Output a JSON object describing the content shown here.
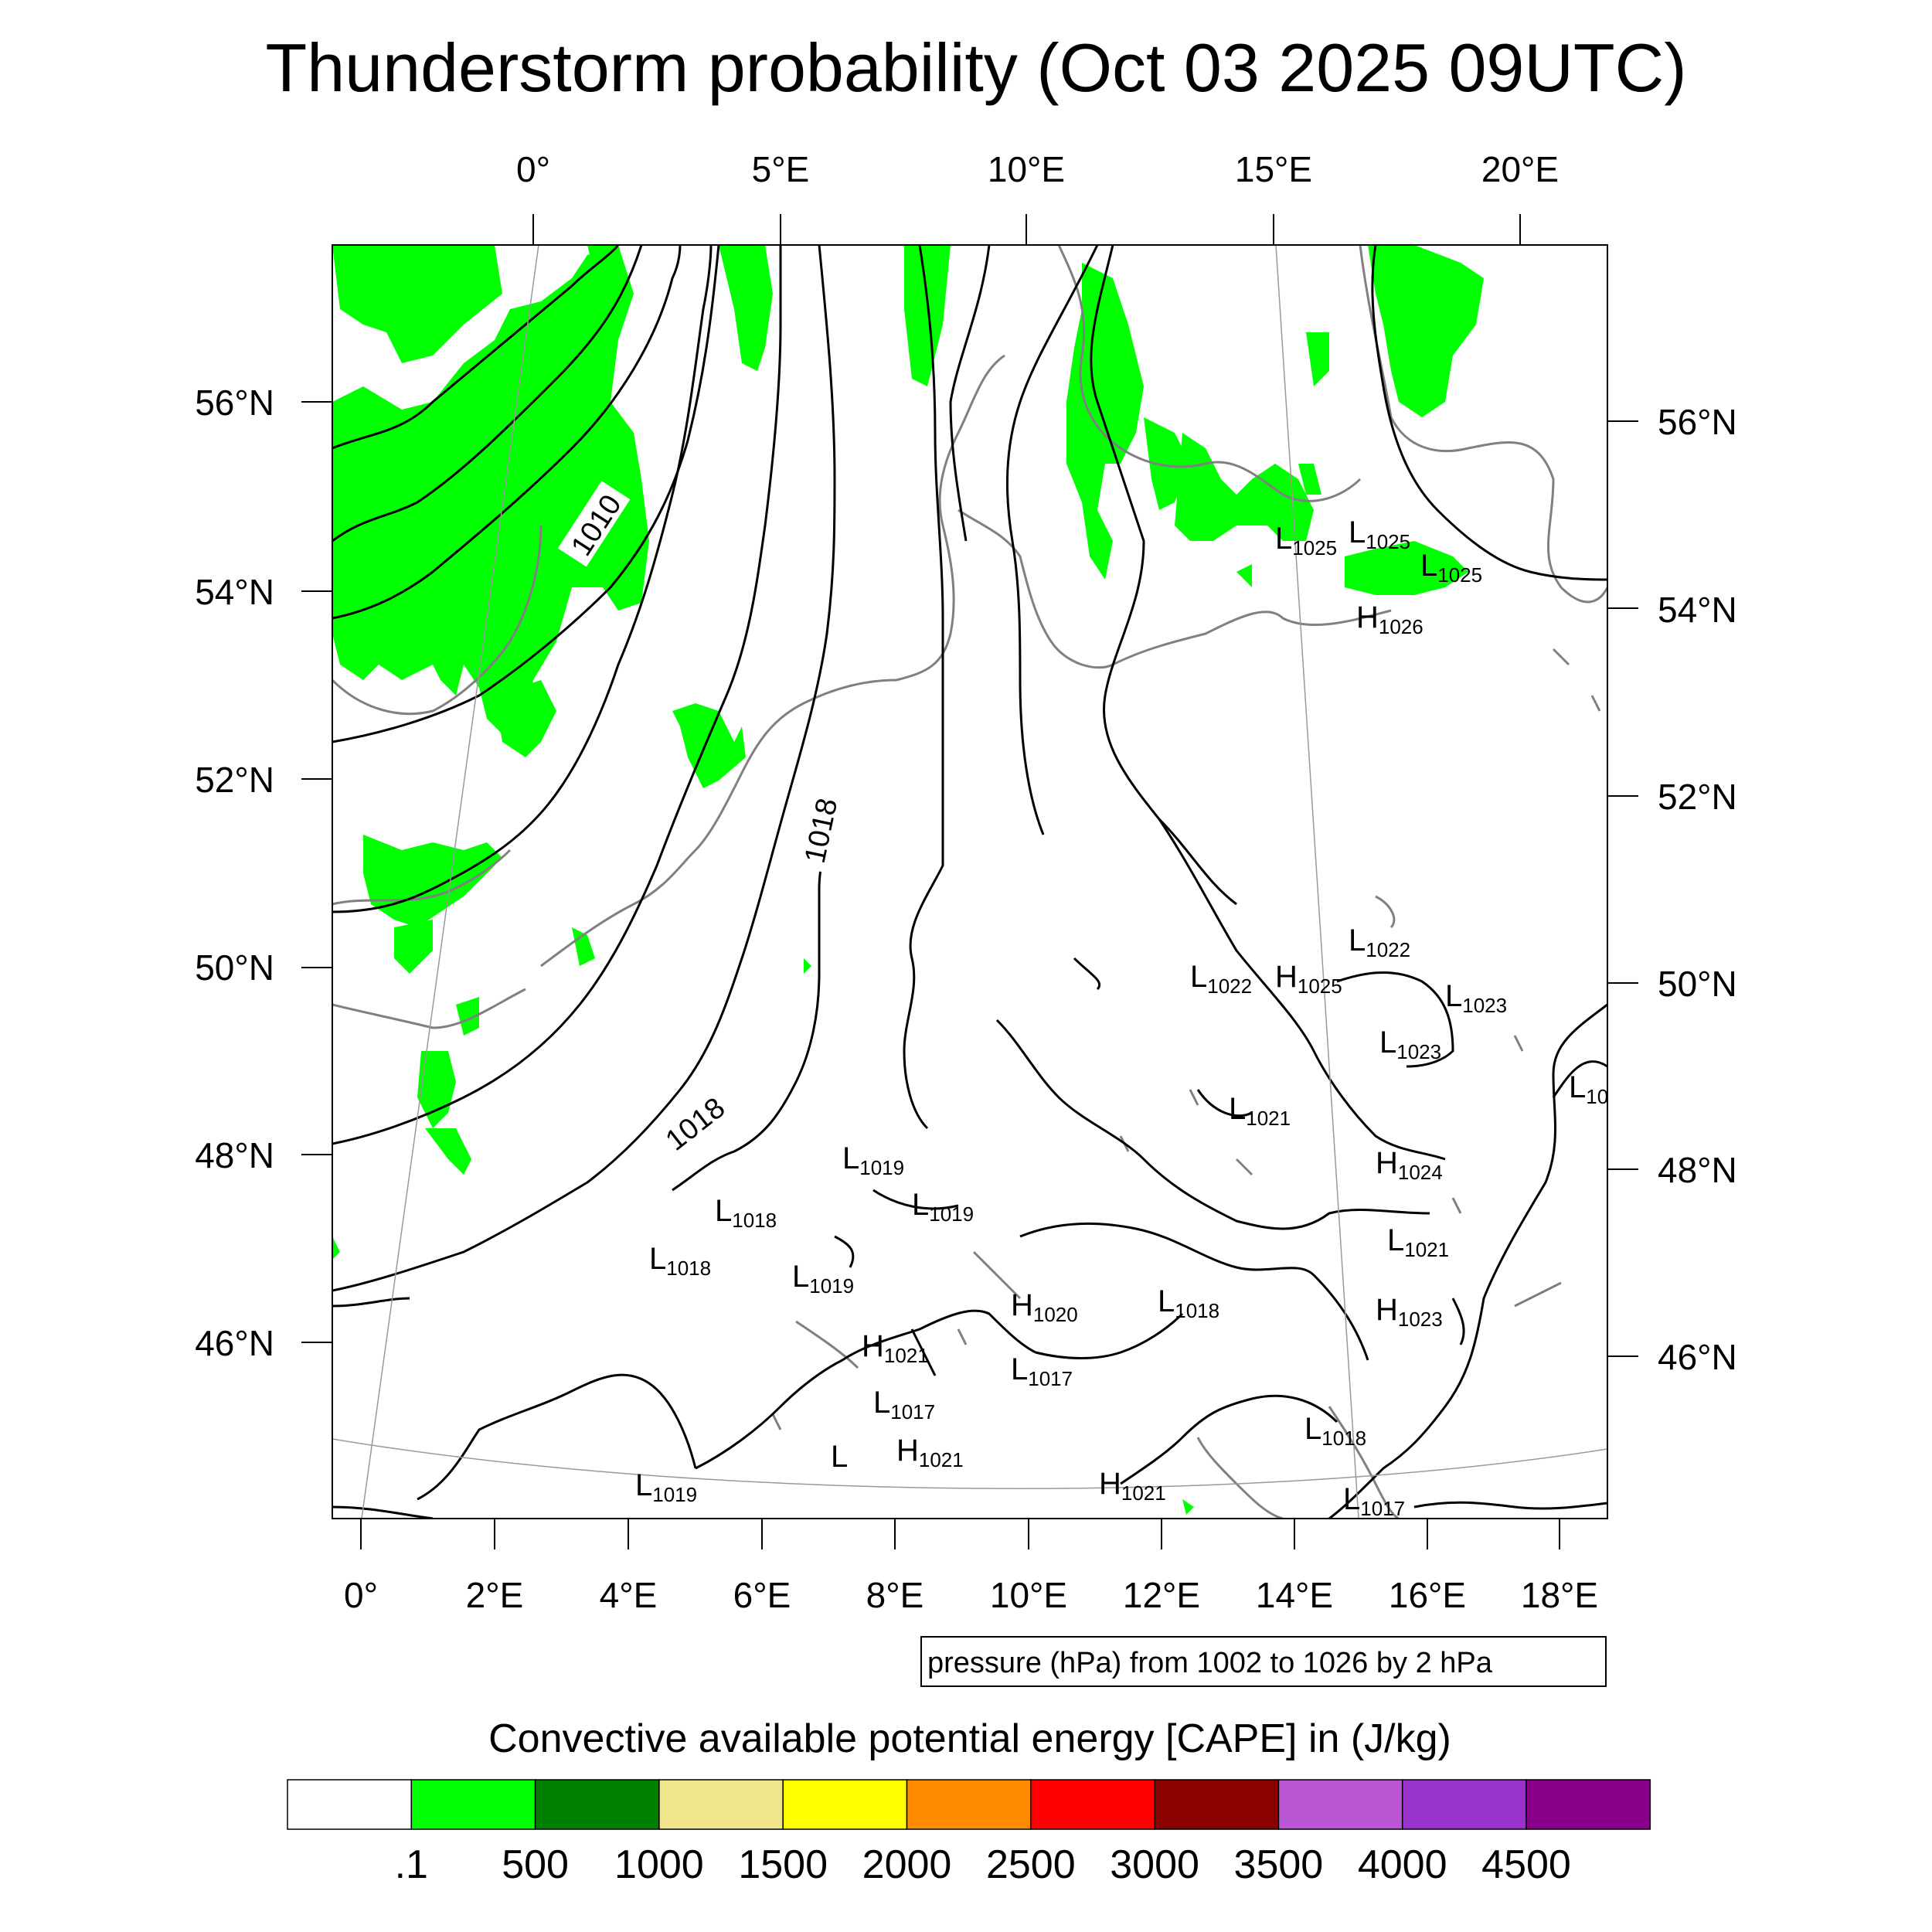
{
  "title": "Thunderstorm probability (Oct 03 2025 09UTC)",
  "top_lon_labels": [
    "0°",
    "5°E",
    "10°E",
    "15°E",
    "20°E"
  ],
  "bottom_lon_labels": [
    "0°",
    "2°E",
    "4°E",
    "6°E",
    "8°E",
    "10°E",
    "12°E",
    "14°E",
    "16°E",
    "18°E"
  ],
  "left_lat_labels": [
    "56°N",
    "54°N",
    "52°N",
    "50°N",
    "48°N",
    "46°N"
  ],
  "right_lat_labels": [
    "56°N",
    "54°N",
    "52°N",
    "50°N",
    "48°N",
    "46°N"
  ],
  "contour_labels": [
    "1010",
    "1018",
    "1018"
  ],
  "pressure_centers": [
    {
      "type": "L",
      "value": "1025"
    },
    {
      "type": "L",
      "value": "1025"
    },
    {
      "type": "L",
      "value": "1025"
    },
    {
      "type": "H",
      "value": "1026"
    },
    {
      "type": "L",
      "value": "1022"
    },
    {
      "type": "L",
      "value": "1022"
    },
    {
      "type": "H",
      "value": "1025"
    },
    {
      "type": "L",
      "value": "1023"
    },
    {
      "type": "L",
      "value": "1023"
    },
    {
      "type": "L",
      "value": "10"
    },
    {
      "type": "L",
      "value": "1021"
    },
    {
      "type": "H",
      "value": "1024"
    },
    {
      "type": "L",
      "value": "1019"
    },
    {
      "type": "L",
      "value": "1019"
    },
    {
      "type": "L",
      "value": "1018"
    },
    {
      "type": "L",
      "value": "1018"
    },
    {
      "type": "L",
      "value": "1019"
    },
    {
      "type": "L",
      "value": "1021"
    },
    {
      "type": "H",
      "value": "1020"
    },
    {
      "type": "L",
      "value": "1018"
    },
    {
      "type": "H",
      "value": "1023"
    },
    {
      "type": "H",
      "value": "1021"
    },
    {
      "type": "L",
      "value": "1017"
    },
    {
      "type": "L",
      "value": "1017"
    },
    {
      "type": "H",
      "value": "1021"
    },
    {
      "type": "L",
      "value": "1018"
    },
    {
      "type": "L",
      "value": "1019"
    },
    {
      "type": "H",
      "value": "1021"
    },
    {
      "type": "L",
      "value": "1017"
    }
  ],
  "contour_note": "pressure (hPa) from 1002 to 1026 by 2 hPa",
  "colorbar": {
    "title": "Convective available potential energy [CAPE] in (J/kg)",
    "labels": [
      ".1",
      "500",
      "1000",
      "1500",
      "2000",
      "2500",
      "3000",
      "3500",
      "4000",
      "4500"
    ],
    "colors": [
      "#ffffff",
      "#00ff00",
      "#008000",
      "#f0e68c",
      "#ffff00",
      "#ff8c00",
      "#ff0000",
      "#8b0000",
      "#ba55d3",
      "#9932cc",
      "#8b008b"
    ]
  },
  "colors": {
    "cape_fill": "#00ff00",
    "coastline": "#808080",
    "isobar": "#000000"
  }
}
